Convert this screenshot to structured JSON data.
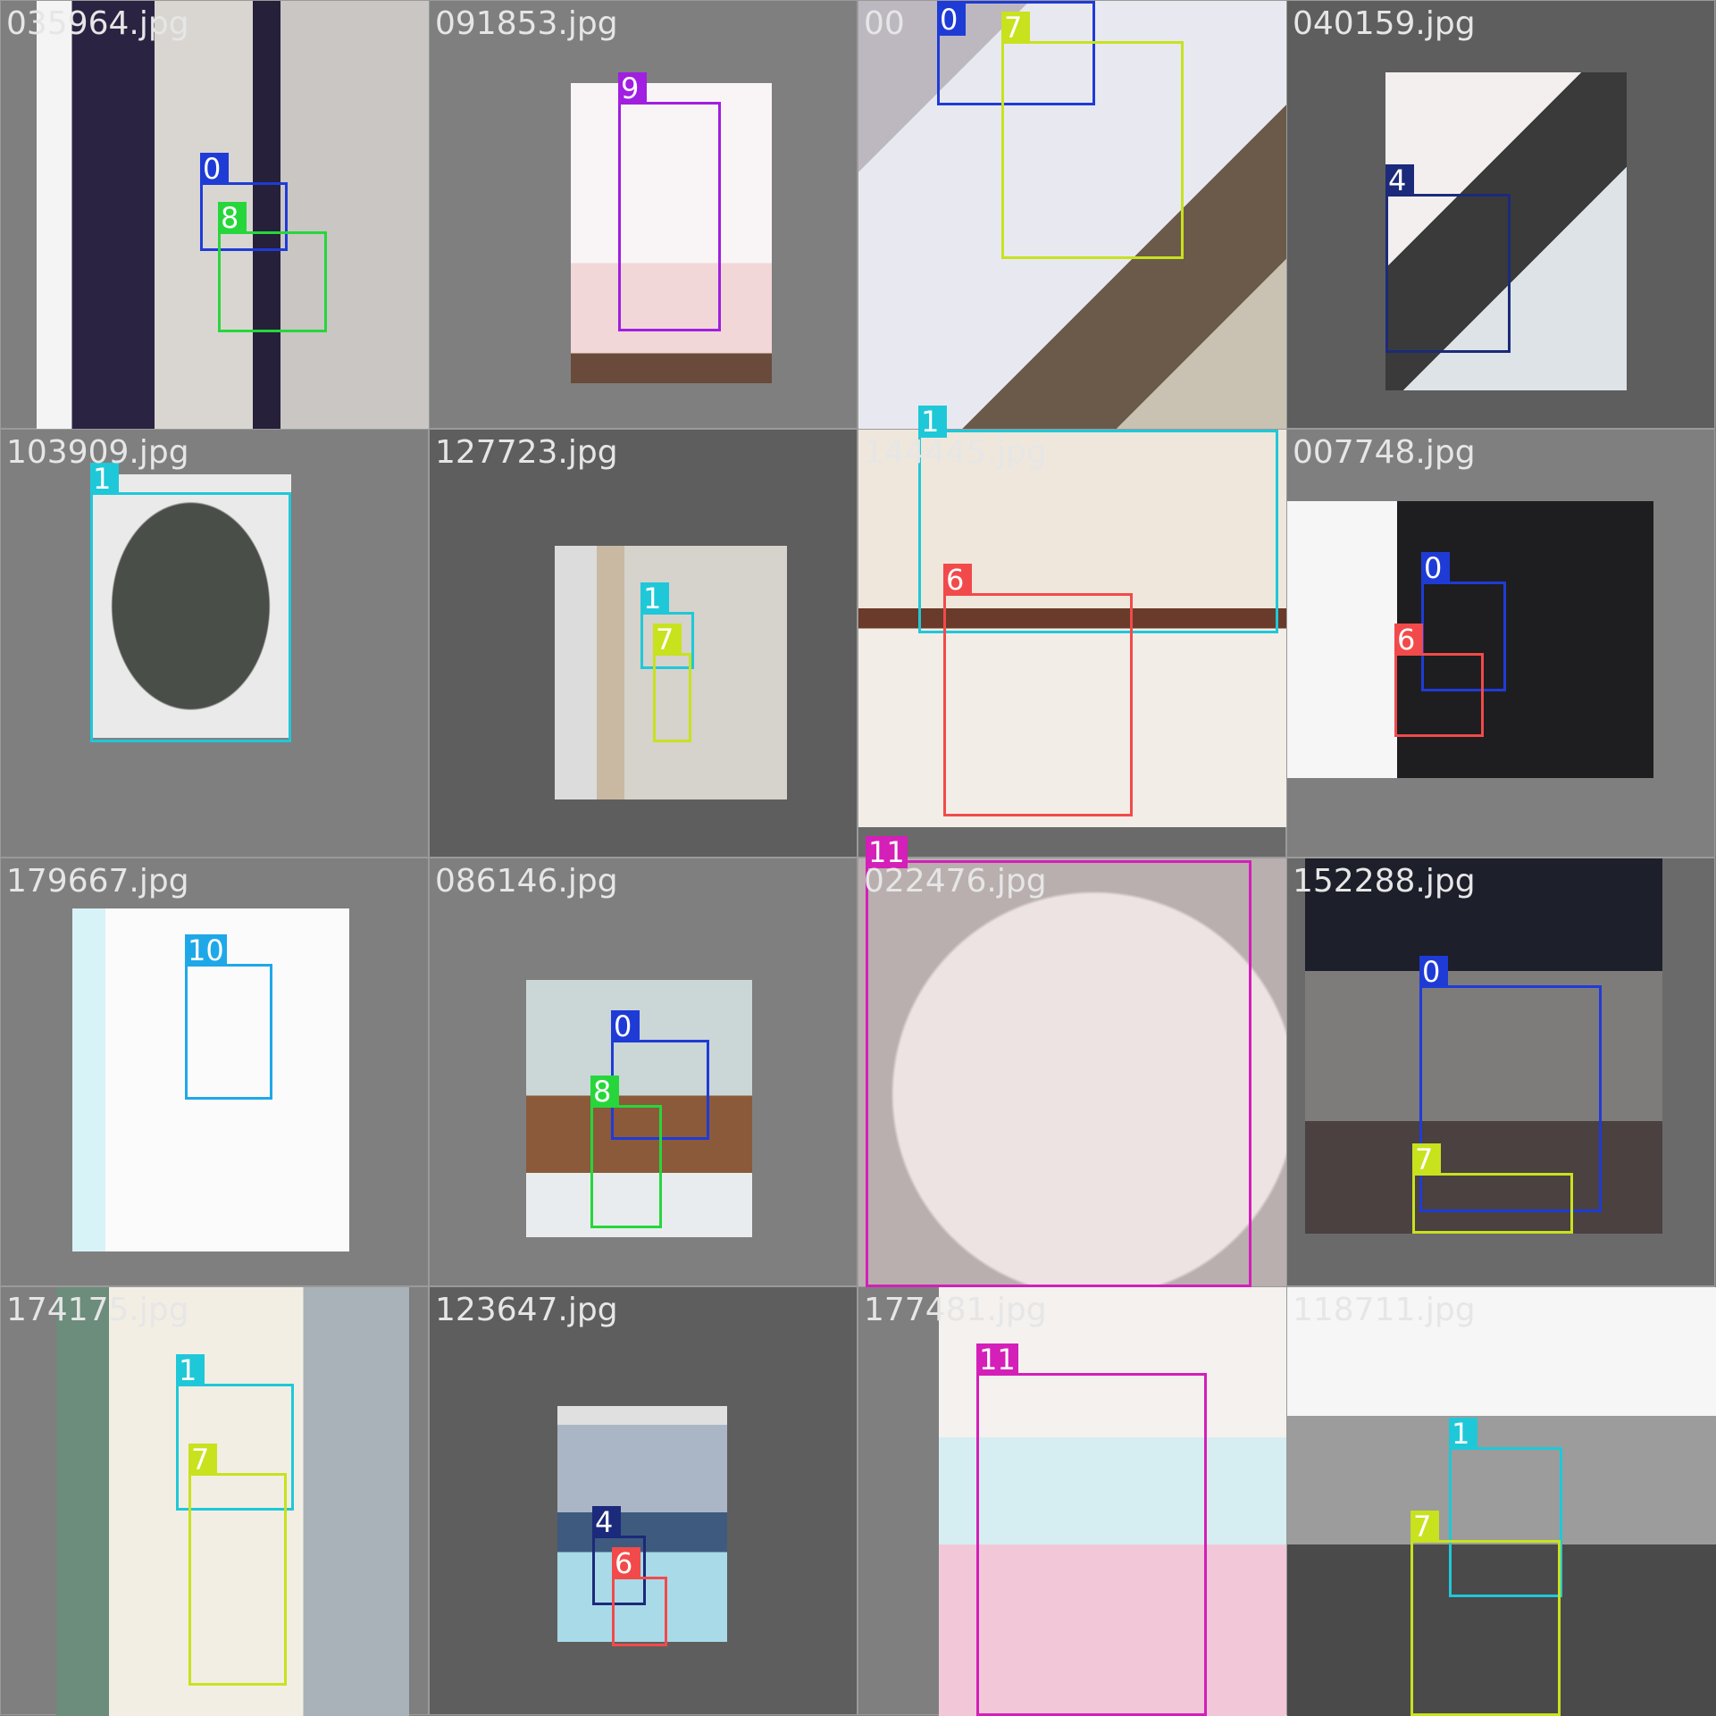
{
  "colors": {
    "class_0": "#1f3bd6",
    "class_1": "#1fc8d8",
    "class_4": "#1b2a7a",
    "class_6": "#f24a4a",
    "class_7": "#c8e21e",
    "class_8": "#27d63b",
    "class_9": "#a01fe0",
    "class_10": "#1fa8e8",
    "class_11": "#d41fb8"
  },
  "tiles": [
    {
      "filename": "035964.jpg",
      "boxes": [
        {
          "label": "0",
          "color": "#1f3bd6"
        },
        {
          "label": "8",
          "color": "#27d63b"
        }
      ]
    },
    {
      "filename": "091853.jpg",
      "boxes": [
        {
          "label": "9",
          "color": "#a01fe0"
        }
      ]
    },
    {
      "filename": "00",
      "boxes": [
        {
          "label": "0",
          "color": "#1f3bd6"
        },
        {
          "label": "7",
          "color": "#c8e21e"
        }
      ]
    },
    {
      "filename": "040159.jpg",
      "boxes": [
        {
          "label": "4",
          "color": "#1b2a7a"
        }
      ]
    },
    {
      "filename": "103909.jpg",
      "boxes": [
        {
          "label": "1",
          "color": "#1fc8d8"
        }
      ]
    },
    {
      "filename": "127723.jpg",
      "boxes": [
        {
          "label": "1",
          "color": "#1fc8d8"
        },
        {
          "label": "7",
          "color": "#c8e21e"
        }
      ]
    },
    {
      "filename": "144445.jpg",
      "boxes": [
        {
          "label": "1",
          "color": "#1fc8d8"
        },
        {
          "label": "6",
          "color": "#f24a4a"
        }
      ]
    },
    {
      "filename": "007748.jpg",
      "boxes": [
        {
          "label": "0",
          "color": "#1f3bd6"
        },
        {
          "label": "6",
          "color": "#f24a4a"
        }
      ]
    },
    {
      "filename": "179667.jpg",
      "boxes": [
        {
          "label": "10",
          "color": "#1fa8e8"
        }
      ]
    },
    {
      "filename": "086146.jpg",
      "boxes": [
        {
          "label": "0",
          "color": "#1f3bd6"
        },
        {
          "label": "8",
          "color": "#27d63b"
        }
      ]
    },
    {
      "filename": "022476.jpg",
      "boxes": [
        {
          "label": "11",
          "color": "#d41fb8"
        }
      ]
    },
    {
      "filename": "152288.jpg",
      "boxes": [
        {
          "label": "0",
          "color": "#1f3bd6"
        },
        {
          "label": "7",
          "color": "#c8e21e"
        }
      ]
    },
    {
      "filename": "174175.jpg",
      "boxes": [
        {
          "label": "1",
          "color": "#1fc8d8"
        },
        {
          "label": "7",
          "color": "#c8e21e"
        }
      ]
    },
    {
      "filename": "123647.jpg",
      "boxes": [
        {
          "label": "4",
          "color": "#1b2a7a"
        },
        {
          "label": "6",
          "color": "#f24a4a"
        }
      ]
    },
    {
      "filename": "177481.jpg",
      "boxes": [
        {
          "label": "11",
          "color": "#d41fb8"
        }
      ]
    },
    {
      "filename": "118711.jpg",
      "boxes": [
        {
          "label": "1",
          "color": "#1fc8d8"
        },
        {
          "label": "7",
          "color": "#c8e21e"
        }
      ]
    }
  ]
}
